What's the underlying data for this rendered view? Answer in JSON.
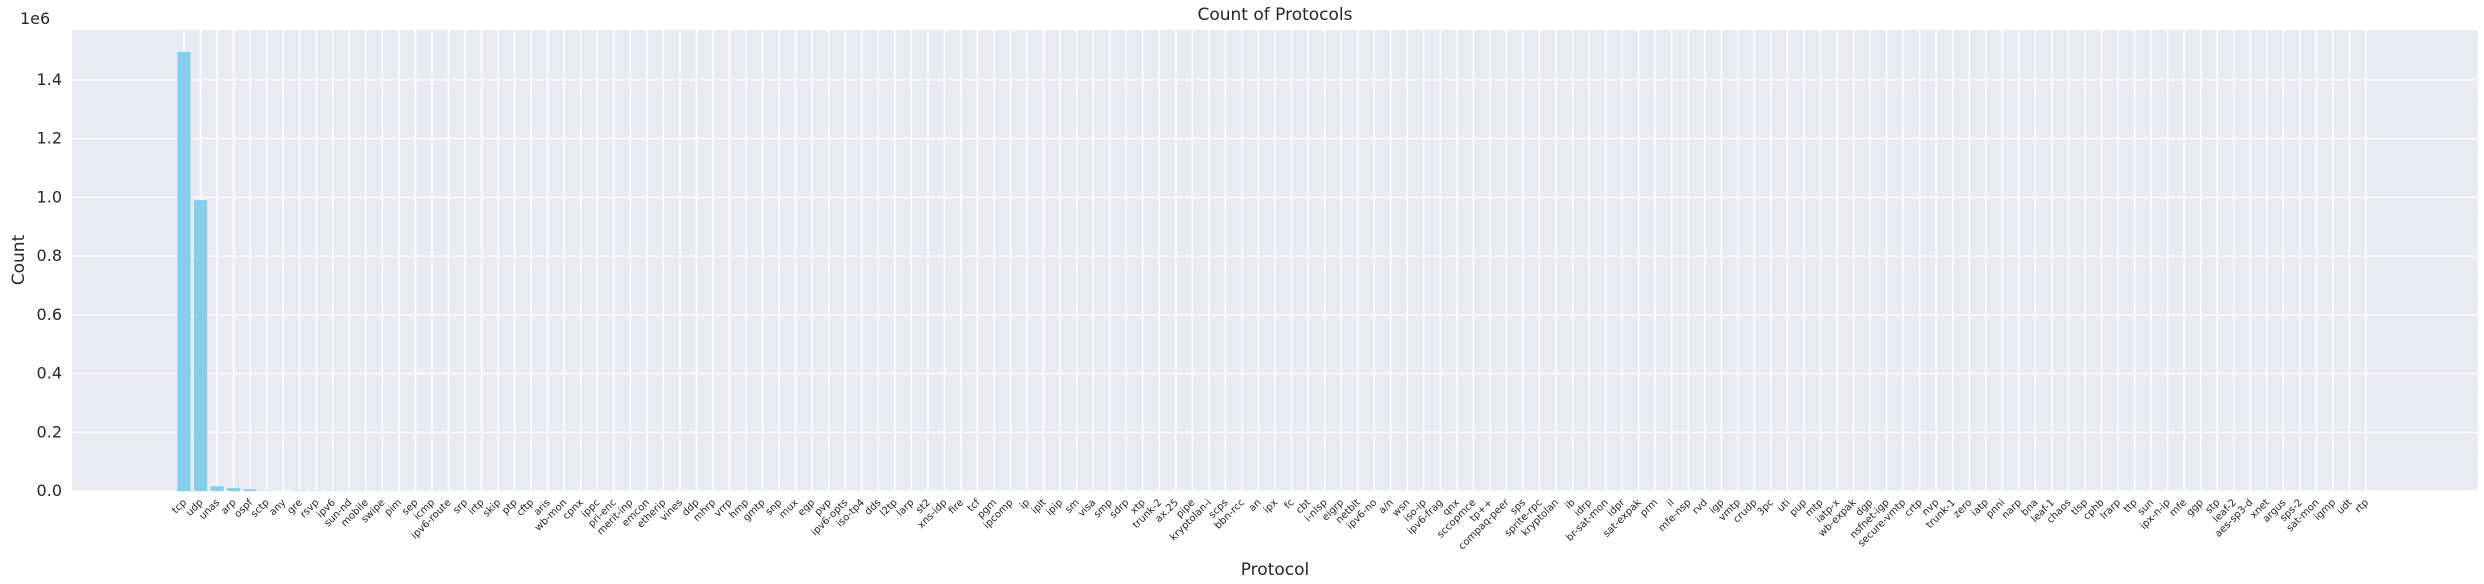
{
  "chart_data": {
    "type": "bar",
    "title": "Count of Protocols",
    "xlabel": "Protocol",
    "ylabel": "Count",
    "offset_text": "1e6",
    "color": "#87ceeb",
    "grid": true,
    "ylim": [
      0,
      1570000
    ],
    "yticks": [
      {
        "value": 0,
        "label": "0.0"
      },
      {
        "value": 200000,
        "label": "0.2"
      },
      {
        "value": 400000,
        "label": "0.4"
      },
      {
        "value": 600000,
        "label": "0.6"
      },
      {
        "value": 800000,
        "label": "0.8"
      },
      {
        "value": 1000000,
        "label": "1.0"
      },
      {
        "value": 1200000,
        "label": "1.2"
      },
      {
        "value": 1400000,
        "label": "1.4"
      }
    ],
    "categories": [
      "tcp",
      "udp",
      "unas",
      "arp",
      "ospf",
      "sctp",
      "any",
      "gre",
      "rsvp",
      "ipv6",
      "sun-nd",
      "mobile",
      "swipe",
      "pim",
      "sep",
      "icmp",
      "ipv6-route",
      "srp",
      "irtp",
      "skip",
      "ptp",
      "cftp",
      "aris",
      "wb-mon",
      "cpnx",
      "ippc",
      "pri-enc",
      "merit-inp",
      "emcon",
      "etherip",
      "vines",
      "ddp",
      "mhrp",
      "vrrp",
      "hmp",
      "gmtp",
      "snp",
      "mux",
      "egp",
      "pvp",
      "ipv6-opts",
      "iso-tp4",
      "dds",
      "l2tp",
      "larp",
      "st2",
      "xns-idp",
      "fire",
      "tcf",
      "pgm",
      "ipcomp",
      "ip",
      "iplt",
      "ipip",
      "sm",
      "visa",
      "smp",
      "sdrp",
      "xtp",
      "trunk-2",
      "ax.25",
      "pipe",
      "kryptolan-i",
      "scps",
      "bbn-rcc",
      "an",
      "ipx",
      "fc",
      "cbt",
      "i-nlsp",
      "eigrp",
      "netblt",
      "ipv6-no",
      "a/n",
      "wsn",
      "iso-ip",
      "ipv6-frag",
      "qnx",
      "sccopmce",
      "tp++",
      "compaq-peer",
      "sps",
      "sprite-rpc",
      "kryptolan",
      "ib",
      "idrp",
      "br-sat-mon",
      "idpr",
      "sat-expak",
      "prm",
      "il",
      "mfe-nsp",
      "rvd",
      "igp",
      "vmtp",
      "crudp",
      "3pc",
      "uti",
      "pup",
      "mtp",
      "iatp-x",
      "wb-expak",
      "dgp",
      "nsfnet-igp",
      "secure-vmtp",
      "crtp",
      "nvp",
      "trunk-1",
      "zero",
      "iatp",
      "pnni",
      "narp",
      "bna",
      "leaf-1",
      "chaos",
      "tlsp",
      "cphb",
      "lrarp",
      "ttp",
      "sun",
      "ipx-n-ip",
      "mfe",
      "ggp",
      "stp",
      "leaf-2",
      "aes-sp3-d",
      "xnet",
      "argus",
      "sps-2",
      "sat-mon",
      "igmp",
      "udt",
      "rtp"
    ],
    "values": [
      1495074,
      990435,
      16000,
      10064,
      6000,
      1150,
      411,
      1200,
      1100,
      1000,
      800,
      700,
      700,
      650,
      600,
      500,
      400,
      350,
      300,
      300,
      300,
      300,
      300,
      300,
      300,
      300,
      300,
      300,
      300,
      300,
      300,
      300,
      300,
      300,
      300,
      300,
      300,
      300,
      300,
      300,
      300,
      300,
      300,
      300,
      300,
      300,
      300,
      300,
      300,
      300,
      300,
      300,
      300,
      300,
      300,
      300,
      300,
      300,
      300,
      300,
      300,
      300,
      300,
      300,
      300,
      300,
      300,
      300,
      300,
      300,
      300,
      300,
      300,
      300,
      300,
      300,
      300,
      300,
      300,
      300,
      300,
      300,
      300,
      300,
      300,
      300,
      300,
      300,
      300,
      300,
      300,
      300,
      300,
      300,
      300,
      300,
      300,
      300,
      300,
      300,
      300,
      300,
      300,
      300,
      300,
      300,
      300,
      300,
      300,
      300,
      300,
      300,
      300,
      300,
      300,
      300,
      300,
      300,
      300,
      300,
      300,
      300,
      300,
      300,
      300,
      300,
      300,
      300,
      300,
      300,
      300,
      300,
      300
    ]
  }
}
